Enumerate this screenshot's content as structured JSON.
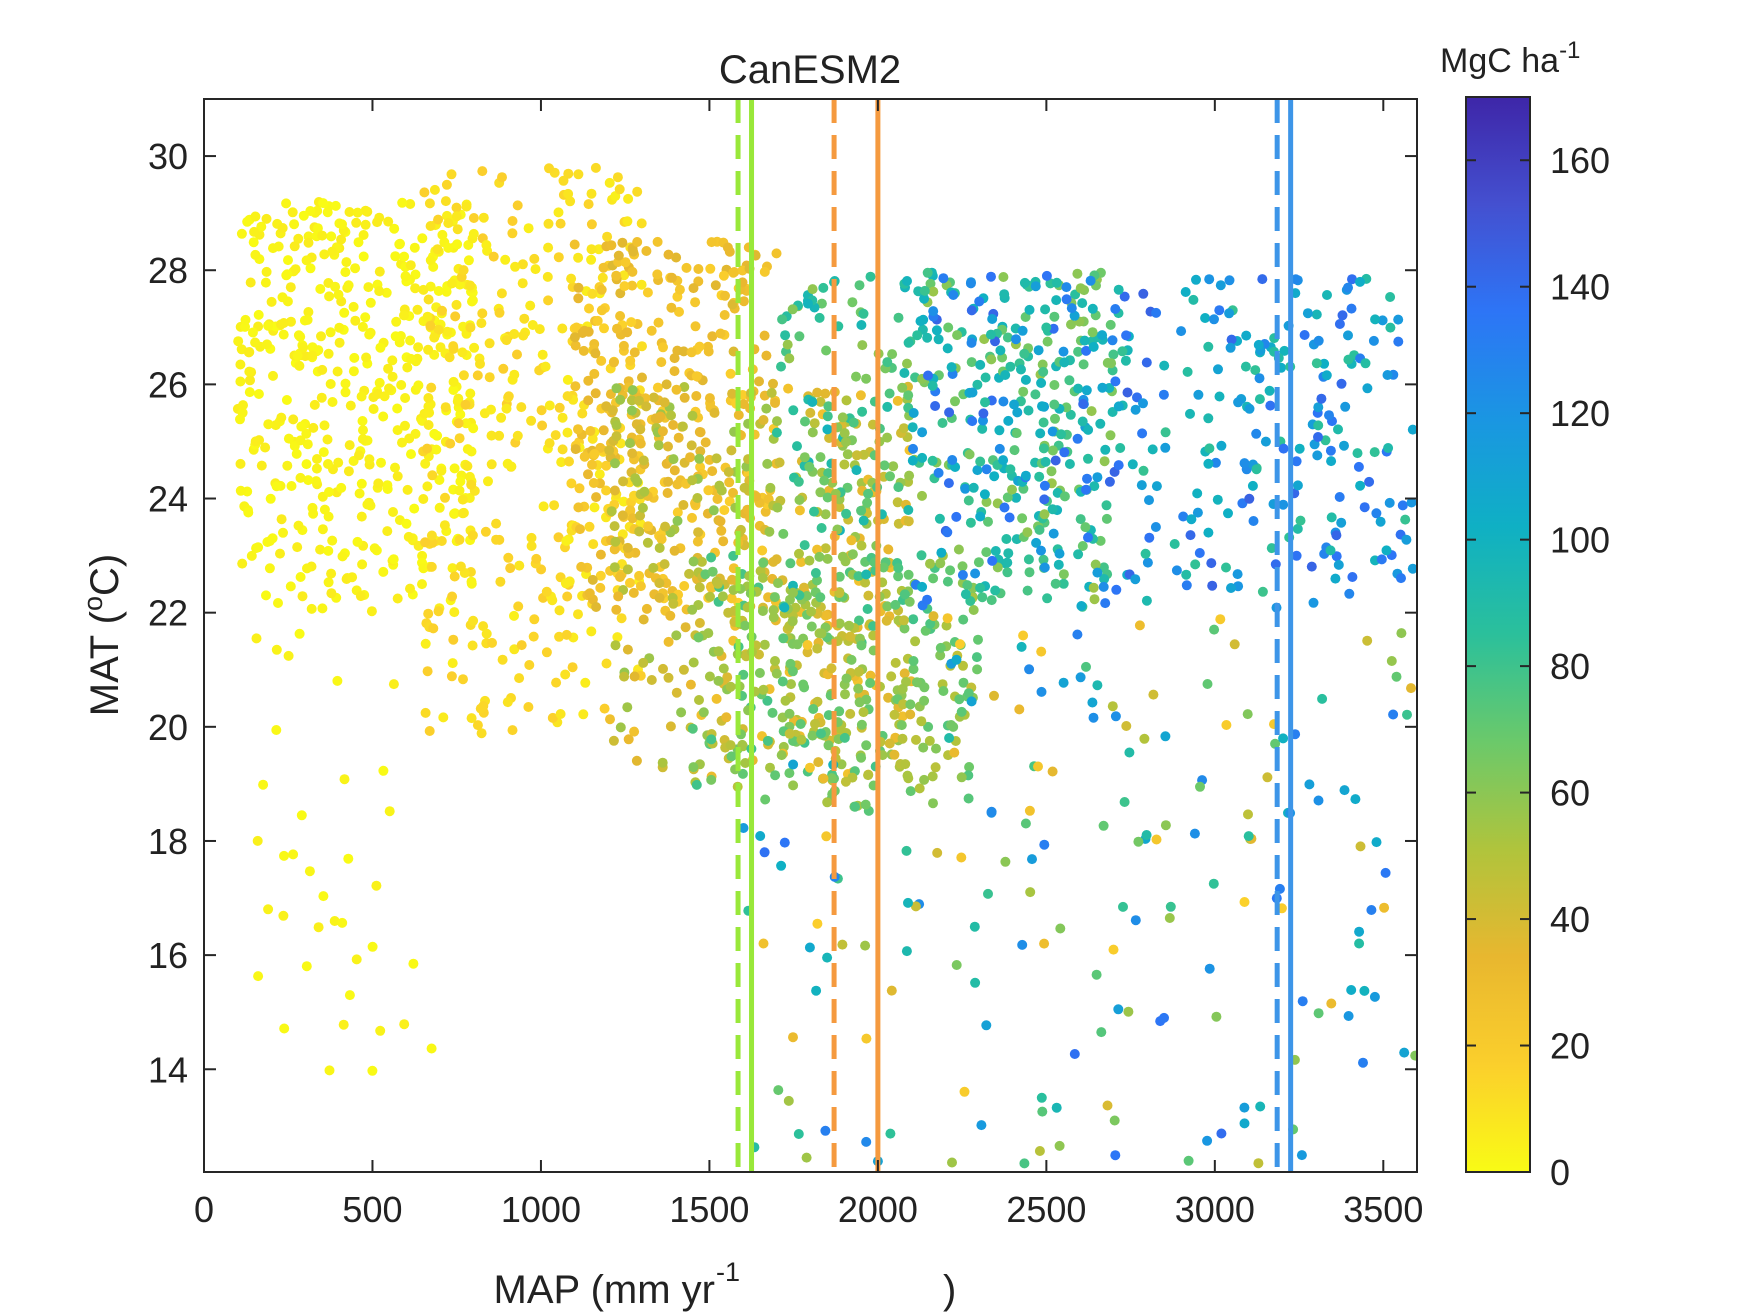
{
  "chart_data": {
    "type": "scatter",
    "title": "CanESM2",
    "xlabel": "MAP (mm yr",
    "xlabel_sup": "-1",
    "xlabel_end": ")",
    "ylabel": "MAT (",
    "ylabel_sup": "o",
    "ylabel_end": "C)",
    "xlim": [
      0,
      3600
    ],
    "ylim": [
      12.2,
      31
    ],
    "xticks": [
      0,
      500,
      1000,
      1500,
      2000,
      2500,
      3000,
      3500
    ],
    "yticks": [
      14,
      16,
      18,
      20,
      22,
      24,
      26,
      28,
      30
    ],
    "grid": false,
    "colorbar": {
      "label": "MgC ha",
      "label_sup": "-1",
      "range": [
        0,
        170
      ],
      "ticks": [
        0,
        20,
        40,
        60,
        80,
        100,
        120,
        140,
        160
      ],
      "colormap": "parula",
      "colormap_stops": [
        "#3e26a8",
        "#4450d0",
        "#2d75f6",
        "#1a96e2",
        "#0fb0c4",
        "#2bc09b",
        "#6bc96a",
        "#b0c43c",
        "#e8b72f",
        "#fbcf2c",
        "#f9fb15"
      ]
    },
    "vertical_lines": [
      {
        "x": 1585,
        "style": "dashed",
        "color": "#99e83a"
      },
      {
        "x": 1625,
        "style": "solid",
        "color": "#99e83a"
      },
      {
        "x": 1870,
        "style": "dashed",
        "color": "#f59a3f"
      },
      {
        "x": 2000,
        "style": "solid",
        "color": "#f59a3f"
      },
      {
        "x": 3185,
        "style": "dashed",
        "color": "#3d95e8"
      },
      {
        "x": 3225,
        "style": "solid",
        "color": "#3d95e8"
      }
    ],
    "point_clusters": [
      {
        "x_range": [
          100,
          800
        ],
        "y_range": [
          22,
          29.2
        ],
        "c_range": [
          0,
          6
        ],
        "count": 480
      },
      {
        "x_range": [
          100,
          700
        ],
        "y_range": [
          13.9,
          22
        ],
        "c_range": [
          0,
          5
        ],
        "count": 38
      },
      {
        "x_range": [
          650,
          1300
        ],
        "y_range": [
          19.8,
          29.8
        ],
        "c_range": [
          4,
          18
        ],
        "count": 360
      },
      {
        "x_range": [
          1100,
          1700
        ],
        "y_range": [
          22,
          28.5
        ],
        "c_range": [
          16,
          38
        ],
        "count": 320
      },
      {
        "x_range": [
          1200,
          2100
        ],
        "y_range": [
          19,
          26
        ],
        "c_range": [
          25,
          60
        ],
        "count": 420
      },
      {
        "x_range": [
          1450,
          2300
        ],
        "y_range": [
          18.5,
          23
        ],
        "c_range": [
          45,
          80
        ],
        "count": 300
      },
      {
        "x_range": [
          1700,
          2700
        ],
        "y_range": [
          22,
          28
        ],
        "c_range": [
          55,
          100
        ],
        "count": 360
      },
      {
        "x_range": [
          2100,
          3600
        ],
        "y_range": [
          22,
          27.9
        ],
        "c_range": [
          80,
          145
        ],
        "count": 380
      },
      {
        "x_range": [
          1600,
          3600
        ],
        "y_range": [
          12.3,
          22
        ],
        "c_range": [
          15,
          140
        ],
        "count": 190
      }
    ]
  }
}
